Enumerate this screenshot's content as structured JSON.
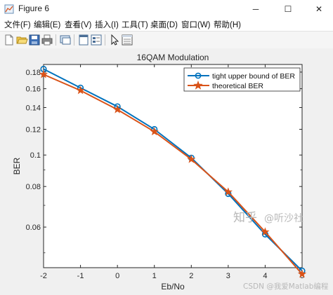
{
  "window": {
    "title": "Figure 6",
    "minimize_glyph": "─",
    "maximize_glyph": "☐",
    "close_glyph": "✕"
  },
  "menu": [
    {
      "id": "file",
      "label": "文件(F)"
    },
    {
      "id": "edit",
      "label": "编辑(E)"
    },
    {
      "id": "view",
      "label": "查看(V)"
    },
    {
      "id": "insert",
      "label": "插入(I)"
    },
    {
      "id": "tools",
      "label": "工具(T)"
    },
    {
      "id": "desktop",
      "label": "桌面(D)"
    },
    {
      "id": "window",
      "label": "窗口(W)"
    },
    {
      "id": "help",
      "label": "帮助(H)"
    }
  ],
  "toolbar_icons": [
    "new-figure-icon",
    "open-file-icon",
    "save-icon",
    "print-icon",
    "link-plot-icon",
    "dock-figure-icon",
    "property-inspector-icon",
    "pointer-icon",
    "plot-tools-icon"
  ],
  "chart_data": {
    "type": "line",
    "title": "16QAM Modulation",
    "xlabel": "Eb/No",
    "ylabel": "BER",
    "yscale": "log",
    "xlim": [
      -2,
      5
    ],
    "ylim": [
      0.045,
      0.19
    ],
    "x": [
      -2,
      -1,
      0,
      1,
      2,
      3,
      4,
      5
    ],
    "x_tick_labels": [
      "-2",
      "-1",
      "0",
      "1",
      "2",
      "3",
      "4",
      "5"
    ],
    "y_ticks": [
      0.06,
      0.08,
      0.1,
      0.12,
      0.14,
      0.16,
      0.18
    ],
    "y_tick_labels": [
      "0.06",
      "0.08",
      "0.1",
      "0.12",
      "0.14",
      "0.16",
      "0.18"
    ],
    "grid": false,
    "legend_position": "top-right",
    "series": [
      {
        "name": "tight upper bound of BER",
        "color": "#0072BD",
        "marker": "circle",
        "values": [
          0.184,
          0.161,
          0.141,
          0.12,
          0.098,
          0.076,
          0.057,
          0.044
        ]
      },
      {
        "name": "theoretical BER",
        "color": "#D95319",
        "marker": "pentagram",
        "values": [
          0.177,
          0.158,
          0.138,
          0.118,
          0.097,
          0.077,
          0.058,
          0.043
        ]
      }
    ]
  },
  "watermark": {
    "zhihu": "知乎",
    "at_author": "@听沙社",
    "csdn": "CSDN @我爱Matlab编程"
  }
}
